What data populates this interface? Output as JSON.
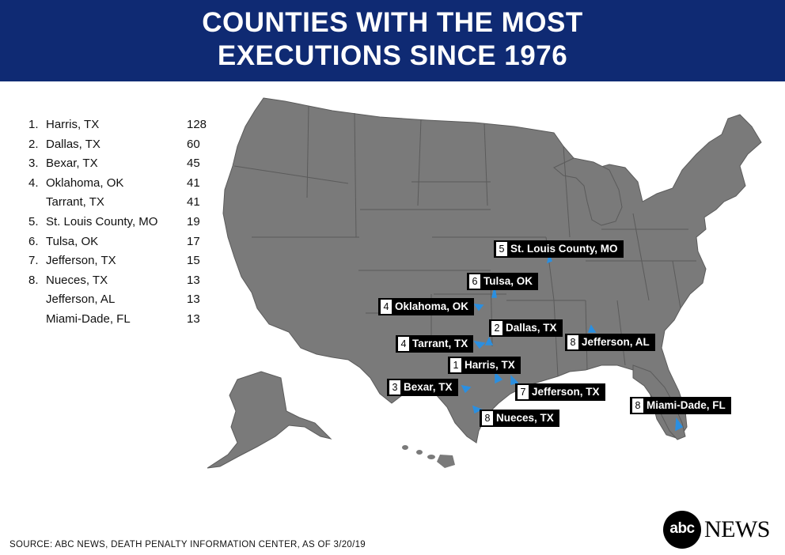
{
  "header": {
    "title_line1": "COUNTIES WITH THE MOST",
    "title_line2": "EXECUTIONS SINCE 1976"
  },
  "ranking": [
    {
      "rank": "1.",
      "county": "Harris, TX",
      "count": "128"
    },
    {
      "rank": "2.",
      "county": "Dallas, TX",
      "count": "60"
    },
    {
      "rank": "3.",
      "county": "Bexar, TX",
      "count": "45"
    },
    {
      "rank": "4.",
      "county": "Oklahoma, OK",
      "count": "41"
    },
    {
      "rank": "",
      "county": "Tarrant, TX",
      "count": "41"
    },
    {
      "rank": "5.",
      "county": "St. Louis County, MO",
      "count": "19"
    },
    {
      "rank": "6.",
      "county": "Tulsa, OK",
      "count": "17"
    },
    {
      "rank": "7.",
      "county": "Jefferson, TX",
      "count": "15"
    },
    {
      "rank": "8.",
      "county": "Nueces, TX",
      "count": "13"
    },
    {
      "rank": "",
      "county": "Jefferson, AL",
      "count": "13"
    },
    {
      "rank": "",
      "county": "Miami-Dade, FL",
      "count": "13"
    }
  ],
  "map_labels": [
    {
      "num": "5",
      "name": "St. Louis County, MO"
    },
    {
      "num": "6",
      "name": "Tulsa, OK"
    },
    {
      "num": "4",
      "name": "Oklahoma, OK"
    },
    {
      "num": "2",
      "name": "Dallas, TX"
    },
    {
      "num": "4",
      "name": "Tarrant, TX"
    },
    {
      "num": "8",
      "name": "Jefferson, AL"
    },
    {
      "num": "1",
      "name": "Harris, TX"
    },
    {
      "num": "3",
      "name": "Bexar, TX"
    },
    {
      "num": "7",
      "name": "Jefferson, TX"
    },
    {
      "num": "8",
      "name": "Miami-Dade, FL"
    },
    {
      "num": "8",
      "name": "Nueces, TX"
    }
  ],
  "colors": {
    "header_bg": "#0f2a73",
    "map_fill": "#7a7a7a",
    "state_border": "#5b5b5b",
    "county_marker": "#2b8fe0",
    "label_bg": "#000000"
  },
  "source": "SOURCE: ABC NEWS, DEATH PENALTY INFORMATION CENTER, AS OF 3/20/19",
  "logo": {
    "mark": "abc",
    "text": "NEWS"
  }
}
